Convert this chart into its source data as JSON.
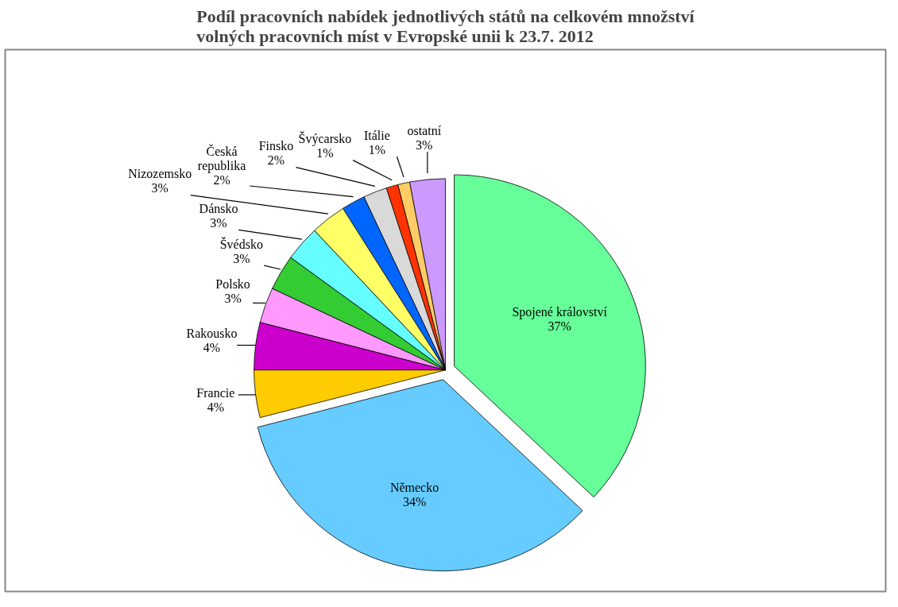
{
  "chart_data": {
    "type": "pie",
    "title": "Podíl pracovních nabídek jednotlivých států na celkovém množství\nvolných pracovních míst v Evropské unii k 23.7. 2012",
    "categories": [
      "Spojené království",
      "Německo",
      "Francie",
      "Rakousko",
      "Polsko",
      "Švédsko",
      "Dánsko",
      "Nizozemsko",
      "Česká republika",
      "Finsko",
      "Švýcarsko",
      "Itálie",
      "ostatní"
    ],
    "values": [
      37,
      34,
      4,
      4,
      3,
      3,
      3,
      3,
      2,
      2,
      1,
      1,
      3
    ],
    "colors": [
      "#66ff99",
      "#66ccff",
      "#ffcc00",
      "#cc00cc",
      "#ff99ff",
      "#33cc33",
      "#66ffff",
      "#ffff66",
      "#0066ff",
      "#d9d9d9",
      "#ff3300",
      "#ffcc66",
      "#cc99ff"
    ],
    "value_labels": [
      "37%",
      "34%",
      "4%",
      "4%",
      "3%",
      "3%",
      "3%",
      "3%",
      "2%",
      "2%",
      "1%",
      "1%",
      "3%"
    ]
  }
}
